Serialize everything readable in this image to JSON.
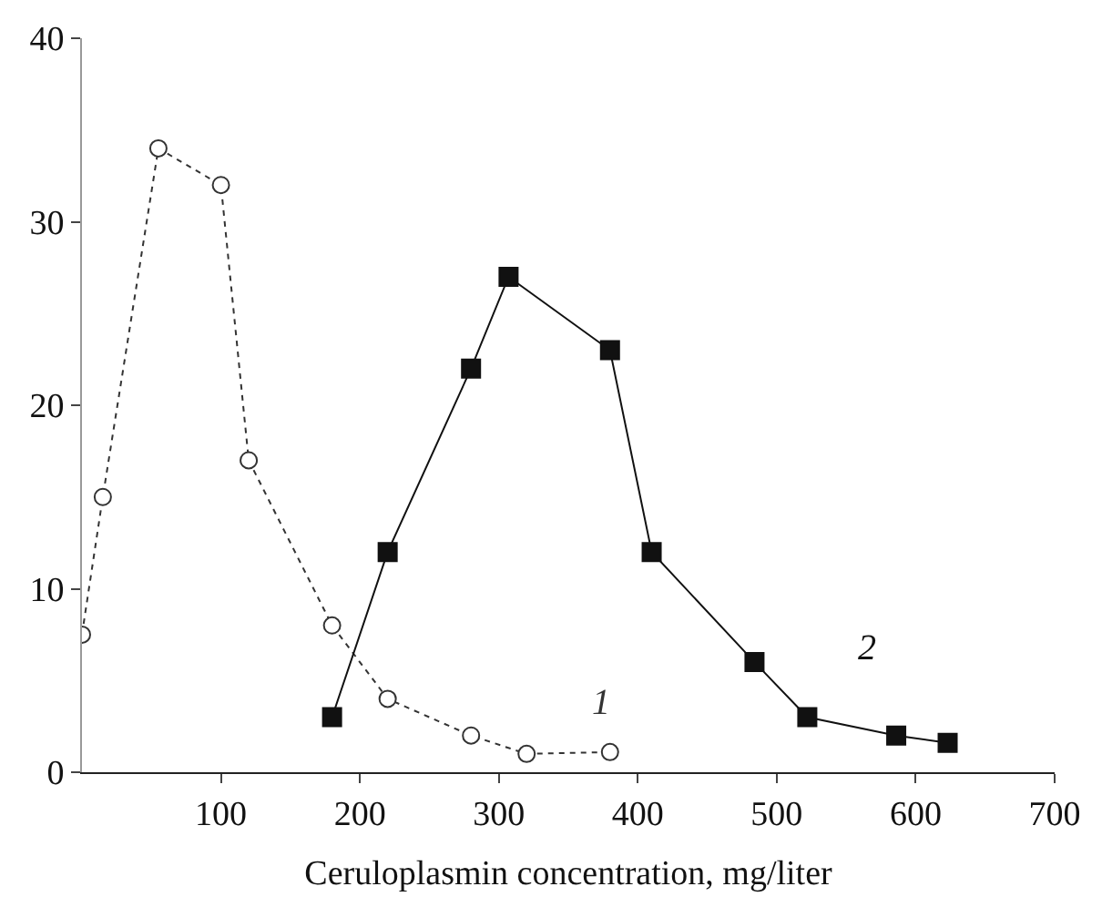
{
  "chart_data": {
    "type": "line",
    "xlabel": "Ceruloplasmin concentration, mg/liter",
    "xlim": [
      0,
      700
    ],
    "xticks": [
      100,
      200,
      300,
      400,
      500,
      600,
      700
    ],
    "ylim": [
      0,
      40
    ],
    "yticks": [
      0,
      10,
      20,
      30,
      40
    ],
    "legend": false,
    "series": [
      {
        "name": "1",
        "color": "#333333",
        "marker": "circle",
        "line_style": "dotted",
        "x": [
          0,
          15,
          55,
          100,
          120,
          180,
          220,
          280,
          320,
          380
        ],
        "values": [
          7.5,
          15,
          34,
          32,
          17,
          8,
          4,
          2,
          1,
          1.1
        ]
      },
      {
        "name": "2",
        "color": "#111111",
        "marker": "square",
        "line_style": "solid",
        "x": [
          180,
          220,
          280,
          307,
          380,
          410,
          484,
          522,
          586,
          623
        ],
        "values": [
          3,
          12,
          22,
          27,
          23,
          12,
          6,
          3,
          2,
          1.6
        ]
      }
    ]
  }
}
